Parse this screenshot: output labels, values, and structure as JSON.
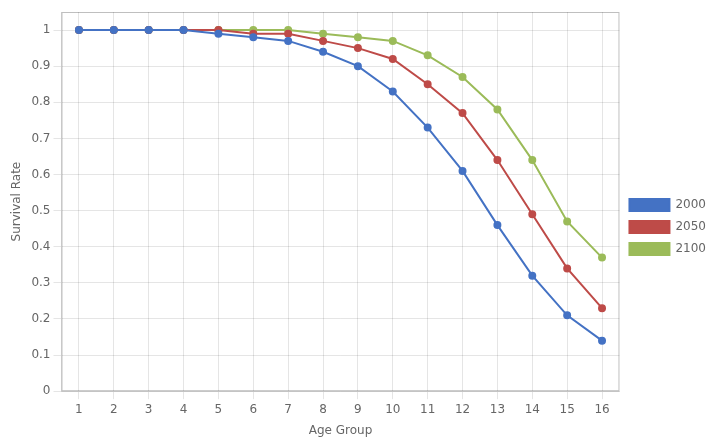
{
  "chart_data": {
    "type": "line",
    "x_label": "Age Group",
    "y_label": "Survival Rate",
    "x": [
      1,
      2,
      3,
      4,
      5,
      6,
      7,
      8,
      9,
      10,
      11,
      12,
      13,
      14,
      15,
      16
    ],
    "series": [
      {
        "name": "2000",
        "color": "#4472C4",
        "values": [
          1.0,
          1.0,
          1.0,
          1.0,
          0.99,
          0.98,
          0.97,
          0.94,
          0.9,
          0.83,
          0.73,
          0.61,
          0.46,
          0.32,
          0.21,
          0.14
        ]
      },
      {
        "name": "2050",
        "color": "#BE4B48",
        "values": [
          1.0,
          1.0,
          1.0,
          1.0,
          1.0,
          0.99,
          0.99,
          0.97,
          0.95,
          0.92,
          0.85,
          0.77,
          0.64,
          0.49,
          0.34,
          0.23
        ]
      },
      {
        "name": "2100",
        "color": "#9BBB59",
        "values": [
          1.0,
          1.0,
          1.0,
          1.0,
          1.0,
          1.0,
          1.0,
          0.99,
          0.98,
          0.97,
          0.93,
          0.87,
          0.78,
          0.64,
          0.47,
          0.37
        ]
      }
    ],
    "xlim": [
      0.5,
      16.5
    ],
    "xticks": [
      1,
      2,
      3,
      4,
      5,
      6,
      7,
      8,
      9,
      10,
      11,
      12,
      13,
      14,
      15,
      16
    ],
    "ylim": [
      0,
      1.05
    ],
    "yticks": [
      0,
      0.1,
      0.2,
      0.3,
      0.4,
      0.5,
      0.6,
      0.7,
      0.8,
      0.9,
      1.0
    ],
    "grid": true,
    "legend": "right"
  }
}
